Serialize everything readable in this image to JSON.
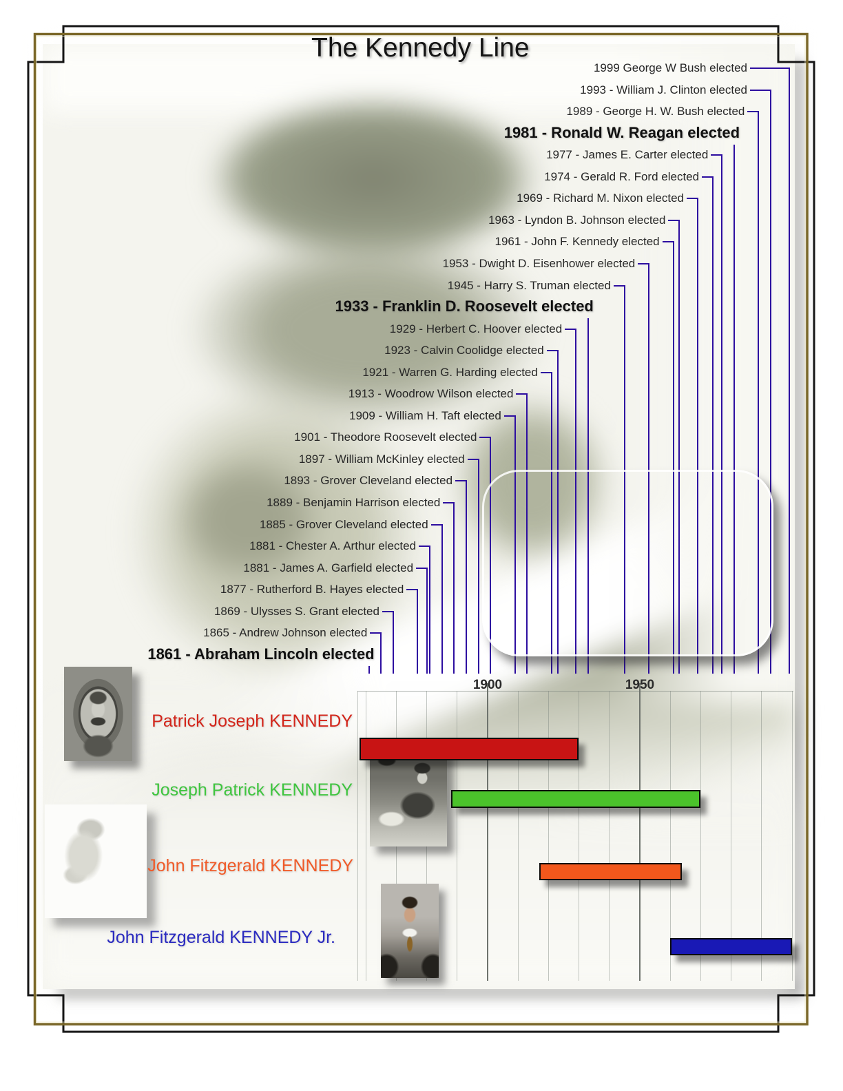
{
  "page": {
    "title": "The Kennedy Line"
  },
  "colors": {
    "timeline_line": "#2d0ea0",
    "election_label": "#262626",
    "election_label_bold": "#111111",
    "frame_outer_black": "#151515",
    "frame_inner_brown": "#7b6829",
    "axis_label": "#2b2b2b"
  },
  "chart_data": {
    "type": "timeline",
    "title": "The Kennedy Line",
    "axis": {
      "unit": "year",
      "range": [
        1857,
        2001
      ],
      "tick_labels": [
        "1900",
        "1950"
      ],
      "major_tick_years": [
        1900,
        1950
      ],
      "gridline_interval_years": 10,
      "grid": true
    },
    "elections": [
      {
        "year": 1999,
        "label": "1999 George W Bush elected",
        "bold": false
      },
      {
        "year": 1993,
        "label": "1993 - William J. Clinton elected",
        "bold": false
      },
      {
        "year": 1989,
        "label": "1989 - George H. W. Bush elected",
        "bold": false
      },
      {
        "year": 1981,
        "label": "1981 - Ronald W. Reagan elected",
        "bold": true
      },
      {
        "year": 1977,
        "label": "1977 - James E. Carter elected",
        "bold": false
      },
      {
        "year": 1974,
        "label": "1974 - Gerald R. Ford elected",
        "bold": false
      },
      {
        "year": 1969,
        "label": "1969 - Richard M. Nixon elected",
        "bold": false
      },
      {
        "year": 1963,
        "label": "1963 - Lyndon B. Johnson elected",
        "bold": false
      },
      {
        "year": 1961,
        "label": "1961 - John F. Kennedy elected",
        "bold": false
      },
      {
        "year": 1953,
        "label": "1953 - Dwight D. Eisenhower elected",
        "bold": false
      },
      {
        "year": 1945,
        "label": "1945 - Harry S. Truman elected",
        "bold": false
      },
      {
        "year": 1933,
        "label": "1933 - Franklin D. Roosevelt elected",
        "bold": true
      },
      {
        "year": 1929,
        "label": "1929 - Herbert C. Hoover elected",
        "bold": false
      },
      {
        "year": 1923,
        "label": "1923 - Calvin Coolidge elected",
        "bold": false
      },
      {
        "year": 1921,
        "label": "1921 - Warren G. Harding elected",
        "bold": false
      },
      {
        "year": 1913,
        "label": "1913 - Woodrow Wilson elected",
        "bold": false
      },
      {
        "year": 1909,
        "label": "1909 - William H. Taft elected",
        "bold": false
      },
      {
        "year": 1901,
        "label": "1901 - Theodore Roosevelt elected",
        "bold": false
      },
      {
        "year": 1897,
        "label": "1897 - William McKinley elected",
        "bold": false
      },
      {
        "year": 1893,
        "label": "1893 - Grover Cleveland elected",
        "bold": false
      },
      {
        "year": 1889,
        "label": "1889 - Benjamin Harrison elected",
        "bold": false
      },
      {
        "year": 1885,
        "label": "1885 - Grover Cleveland elected",
        "bold": false
      },
      {
        "year": 1881,
        "label": "1881 - Chester A. Arthur elected",
        "bold": false
      },
      {
        "year": 1881,
        "label": "1881 - James A. Garfield elected",
        "bold": false
      },
      {
        "year": 1877,
        "label": "1877 - Rutherford B. Hayes elected",
        "bold": false
      },
      {
        "year": 1869,
        "label": "1869 - Ulysses S. Grant elected",
        "bold": false
      },
      {
        "year": 1865,
        "label": "1865 - Andrew Johnson elected",
        "bold": false
      },
      {
        "year": 1861,
        "label": "1861 - Abraham Lincoln elected",
        "bold": true
      }
    ],
    "people": [
      {
        "name": "Patrick Joseph KENNEDY",
        "birth_year": 1858,
        "death_year": 1929,
        "bar_color": "#c81414",
        "name_color": "#d3251a"
      },
      {
        "name": "Joseph Patrick KENNEDY",
        "birth_year": 1888,
        "death_year": 1969,
        "bar_color": "#4bc32b",
        "name_color": "#3fc53f"
      },
      {
        "name": "John Fitzgerald KENNEDY",
        "birth_year": 1917,
        "death_year": 1963,
        "bar_color": "#f2571c",
        "name_color": "#f05a28"
      },
      {
        "name": "John Fitzgerald KENNEDY Jr.",
        "birth_year": 1960,
        "death_year": 1999,
        "bar_color": "#1919b5",
        "name_color": "#2a2ac0"
      }
    ],
    "photos": [
      {
        "name": "kennedy-family-group-photo"
      },
      {
        "name": "patrick-joseph-kennedy-portrait"
      },
      {
        "name": "joseph-patrick-kennedy-desk-photo"
      },
      {
        "name": "john-f-kennedy-profile-sketch"
      },
      {
        "name": "john-f-kennedy-jr-photo"
      }
    ]
  }
}
